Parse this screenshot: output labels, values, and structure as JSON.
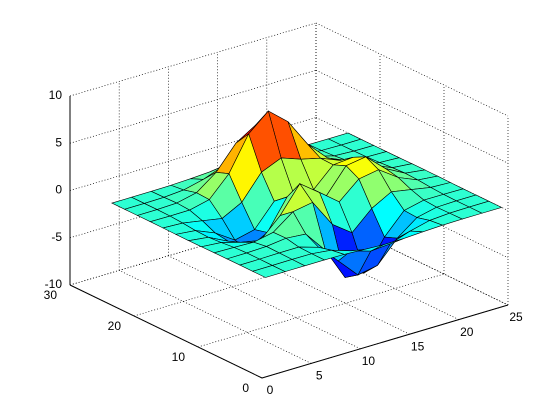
{
  "chart_data": {
    "type": "surface",
    "x": [
      1,
      3,
      5,
      7,
      9,
      11,
      13,
      15,
      17,
      19,
      21,
      23,
      25
    ],
    "y": [
      1,
      3,
      5,
      7,
      9,
      11,
      13,
      15,
      17,
      19,
      21,
      23,
      25
    ],
    "z": [
      [
        0,
        0,
        0,
        0,
        -0.03,
        -0.14,
        -0.24,
        -0.22,
        -0.11,
        -0.03,
        0,
        0,
        0
      ],
      [
        0,
        0,
        0.02,
        0,
        -0.24,
        -0.92,
        -1.57,
        -1.41,
        -0.69,
        -0.18,
        -0.03,
        0,
        0
      ],
      [
        0,
        0.01,
        0.05,
        0.05,
        -0.59,
        -2.64,
        -4.75,
        -4.34,
        -2.1,
        -0.53,
        -0.06,
        0,
        0
      ],
      [
        0,
        0.01,
        0.08,
        0.33,
        0.15,
        -2.19,
        -5.68,
        -5.76,
        -2.64,
        -0.44,
        0.04,
        0.03,
        0
      ],
      [
        -0.01,
        -0.06,
        -0.13,
        0.3,
        1.86,
        2.23,
        -0.72,
        -2.22,
        -0.27,
        0.88,
        0.5,
        0.11,
        0.01
      ],
      [
        -0.03,
        -0.2,
        -0.8,
        -1.21,
        0.8,
        3.55,
        2,
        0.39,
        2.2,
        2.56,
        1.12,
        0.24,
        0.03
      ],
      [
        -0.04,
        -0.3,
        -1.33,
        -2.77,
        -1.65,
        1.48,
        0.98,
        0.38,
        2.94,
        3.27,
        1.41,
        0.3,
        0.03
      ],
      [
        -0.03,
        -0.25,
        -1.12,
        -2.49,
        -2,
        0.39,
        0.46,
        0.38,
        2.38,
        2.56,
        1.09,
        0.23,
        0.03
      ],
      [
        -0.01,
        -0.11,
        -0.48,
        -0.86,
        0.23,
        2.8,
        3.69,
        2.94,
        2.43,
        1.58,
        0.58,
        0.12,
        0.01
      ],
      [
        0,
        -0.02,
        -0.01,
        0.48,
        2.61,
        6.2,
        8,
        6.25,
        3.25,
        1.19,
        0.29,
        0.05,
        0
      ],
      [
        0,
        0.01,
        0.08,
        0.55,
        2.1,
        4.55,
        5.85,
        4.56,
        2.21,
        0.68,
        0.13,
        0.02,
        0
      ],
      [
        0,
        0,
        0.03,
        0.19,
        0.69,
        1.47,
        1.89,
        1.47,
        0.7,
        0.21,
        0.04,
        0,
        0
      ],
      [
        0,
        0,
        0.01,
        0.03,
        0.11,
        0.23,
        0.3,
        0.23,
        0.11,
        0.03,
        0.01,
        0,
        0
      ]
    ],
    "xlim": [
      0,
      25
    ],
    "ylim": [
      0,
      30
    ],
    "zlim": [
      -10,
      10
    ],
    "xticks": [
      0,
      5,
      10,
      15,
      20,
      25
    ],
    "yticks": [
      0,
      10,
      20,
      30
    ],
    "zticks": [
      -10,
      -5,
      0,
      5,
      10
    ],
    "colormap": "jet",
    "grid": true
  }
}
